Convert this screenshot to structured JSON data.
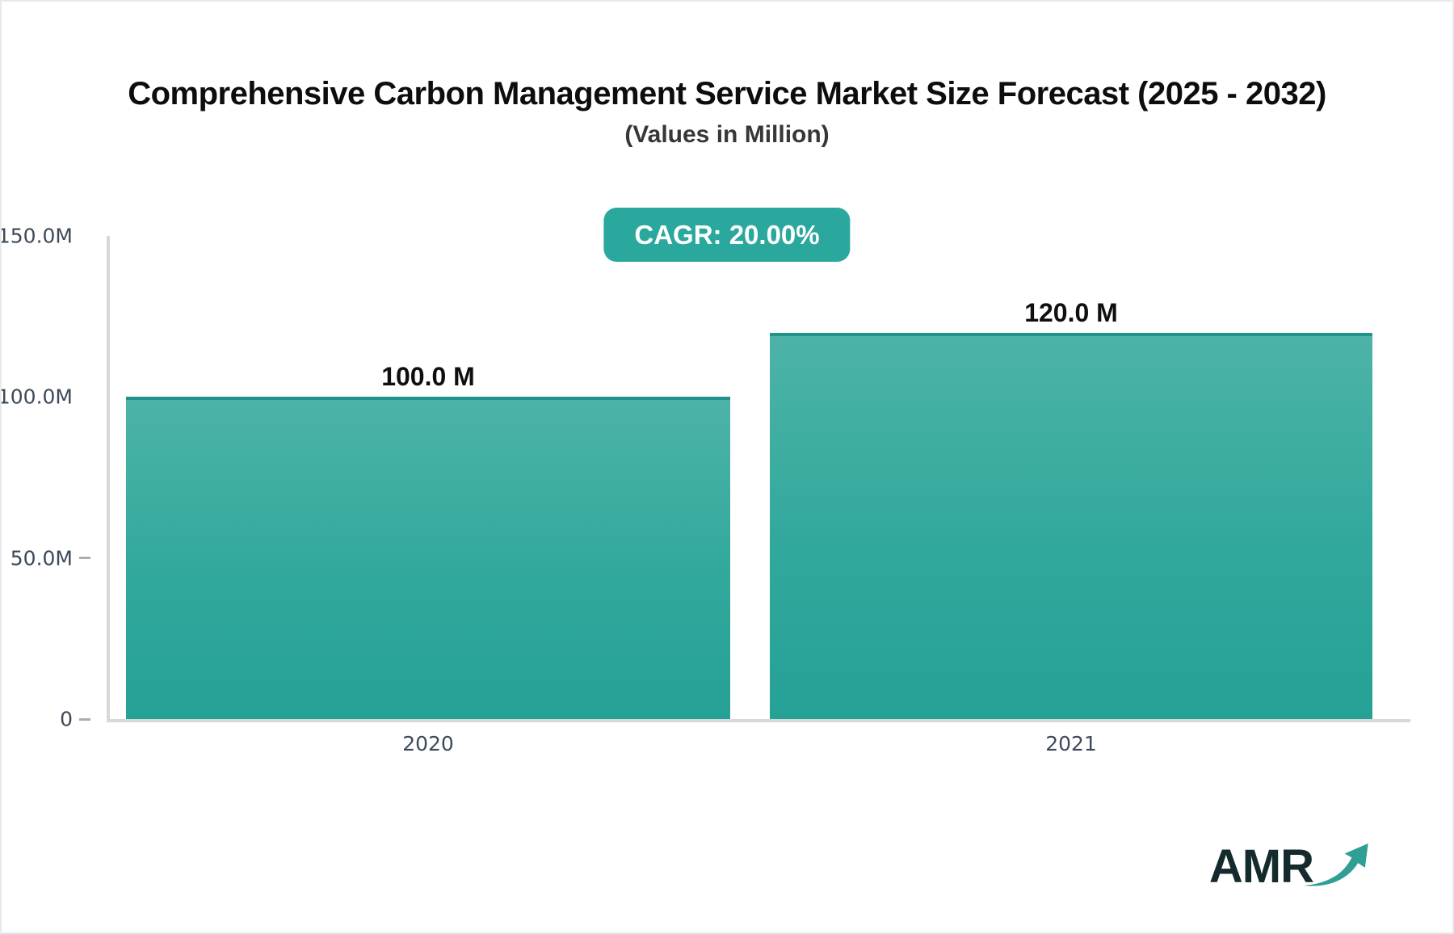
{
  "page": {
    "title": "Comprehensive Carbon Management Service Market Size Forecast (2025 - 2032)",
    "subtitle": "(Values in Million)",
    "cagr_label": "CAGR: 20.00%"
  },
  "chart_data": {
    "type": "bar",
    "title": "Comprehensive Carbon Management Service Market Size Forecast (2025 - 2032)",
    "subtitle": "(Values in Million)",
    "unit": "Million",
    "cagr_percent": 20.0,
    "categories": [
      "2020",
      "2021"
    ],
    "values": [
      100.0,
      120.0
    ],
    "bar_labels": [
      "100.0 M",
      "120.0 M"
    ],
    "ylim": [
      0,
      150
    ],
    "yticks": [
      {
        "value": 0,
        "label": "0",
        "dash": true
      },
      {
        "value": 50,
        "label": "50.0M",
        "dash": true
      },
      {
        "value": 100,
        "label": "100.0M",
        "dash": false
      },
      {
        "value": 150,
        "label": "150.0M",
        "dash": false
      }
    ],
    "grid": false,
    "legend": "none",
    "colors": {
      "bar_top": "#4db3a8",
      "bar_bottom": "#26a196",
      "bar_border": "#1f948b",
      "badge": "#2aa89d",
      "axis_line": "#d6d8dc",
      "tick_text": "#3e4a59"
    }
  },
  "branding": {
    "logo_text": "AMR",
    "logo_arrow_icon": "trending-up-arrow",
    "logo_color": "#142a2d",
    "arrow_color": "#2f9e94"
  }
}
